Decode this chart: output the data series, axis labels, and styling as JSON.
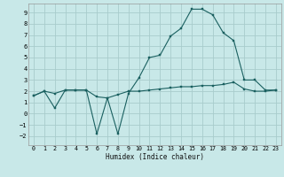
{
  "xlabel": "Humidex (Indice chaleur)",
  "xlim": [
    -0.5,
    23.5
  ],
  "ylim": [
    -2.8,
    9.8
  ],
  "yticks": [
    -2,
    -1,
    0,
    1,
    2,
    3,
    4,
    5,
    6,
    7,
    8,
    9
  ],
  "xticks": [
    0,
    1,
    2,
    3,
    4,
    5,
    6,
    7,
    8,
    9,
    10,
    11,
    12,
    13,
    14,
    15,
    16,
    17,
    18,
    19,
    20,
    21,
    22,
    23
  ],
  "background_color": "#c8e8e8",
  "grid_color": "#a8cccc",
  "line_color": "#1a6060",
  "line1_x": [
    0,
    1,
    2,
    3,
    4,
    5,
    6,
    7,
    8,
    9,
    10,
    11,
    12,
    13,
    14,
    15,
    16,
    17,
    18,
    19,
    20,
    21,
    22,
    23
  ],
  "line1_y": [
    1.6,
    2.0,
    1.8,
    2.1,
    2.1,
    2.1,
    1.5,
    1.4,
    1.7,
    2.0,
    2.0,
    2.1,
    2.2,
    2.3,
    2.4,
    2.4,
    2.5,
    2.5,
    2.6,
    2.8,
    2.2,
    2.0,
    2.0,
    2.1
  ],
  "line2_x": [
    0,
    1,
    2,
    3,
    4,
    5,
    6,
    7,
    8,
    9,
    10,
    11,
    12,
    13,
    14,
    15,
    16,
    17,
    18,
    19,
    20,
    21,
    22,
    23
  ],
  "line2_y": [
    1.6,
    2.0,
    0.5,
    2.1,
    2.1,
    2.1,
    -1.8,
    1.4,
    -1.8,
    1.8,
    3.2,
    5.0,
    5.2,
    6.9,
    7.6,
    9.3,
    9.3,
    8.8,
    7.2,
    6.5,
    3.0,
    3.0,
    2.1,
    2.1
  ]
}
